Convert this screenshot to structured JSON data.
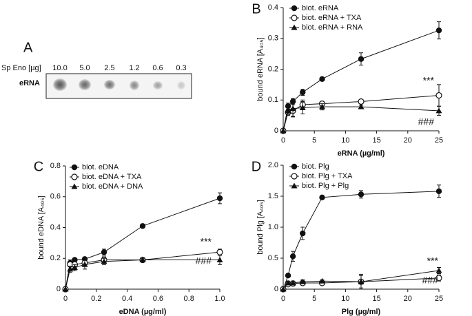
{
  "blot": {
    "panel": "A",
    "axis_label": "Sp Eno [µg]",
    "amounts": [
      "10.0",
      "5.0",
      "2.5",
      "1.2",
      "0.6",
      "0.3"
    ],
    "row_label": "eRNA"
  },
  "chart_data": [
    {
      "type": "line",
      "panel": "B",
      "x_label": "eRNA (µg/ml)",
      "y_label": "bound eRNA [A₄₀₅]",
      "x": [
        0,
        0.78,
        1.56,
        3.125,
        6.25,
        12.5,
        25
      ],
      "xlim": [
        0,
        25
      ],
      "xticks": [
        0,
        5,
        10,
        15,
        20,
        25
      ],
      "ylim": [
        0,
        0.4
      ],
      "yticks": [
        0,
        0.1,
        0.2,
        0.3,
        0.4
      ],
      "series": [
        {
          "name": "biot. eRNA",
          "color": "#111111",
          "marker": "circle",
          "values": [
            0,
            0.08,
            0.095,
            0.125,
            0.168,
            0.233,
            0.326
          ],
          "errors": [
            0,
            0.01,
            0.01,
            0.01,
            0.006,
            0.02,
            0.028
          ]
        },
        {
          "name": "biot. eRNA + TXA",
          "color": "#111111",
          "marker": "open-circle",
          "values": [
            0,
            0.06,
            0.065,
            0.085,
            0.088,
            0.095,
            0.115
          ],
          "errors": [
            0,
            0.01,
            0.02,
            0.015,
            0.006,
            0.005,
            0.035
          ]
        },
        {
          "name": "biot. eRNA + RNA",
          "color": "#111111",
          "marker": "triangle",
          "values": [
            0,
            0.065,
            0.072,
            0.075,
            0.078,
            0.078,
            0.065
          ],
          "errors": [
            0,
            0.01,
            0.025,
            0.02,
            0.01,
            0.005,
            0.015
          ]
        }
      ],
      "annotations": [
        "***",
        "###"
      ]
    },
    {
      "type": "line",
      "panel": "C",
      "x_label": "eDNA (µg/ml)",
      "y_label": "bound eDNA [A₄₀₅]",
      "x": [
        0,
        0.03,
        0.06,
        0.125,
        0.25,
        0.5,
        1.0
      ],
      "xlim": [
        0,
        1
      ],
      "xticks": [
        0,
        0.2,
        0.4,
        0.6,
        0.8,
        {
          "value": 1,
          "label": "1.0"
        }
      ],
      "ylim": [
        0,
        0.8
      ],
      "yticks": [
        0,
        0.2,
        0.4,
        0.6,
        0.8
      ],
      "series": [
        {
          "name": "biot. eDNA",
          "color": "#111111",
          "marker": "circle",
          "values": [
            0,
            0.17,
            0.19,
            0.195,
            0.24,
            0.41,
            0.59
          ],
          "errors": [
            0,
            0.01,
            0.01,
            0.01,
            0.02,
            0.01,
            0.035
          ]
        },
        {
          "name": "biot. eDNA + TXA",
          "color": "#111111",
          "marker": "open-circle",
          "values": [
            0,
            0.16,
            0.16,
            0.17,
            0.19,
            0.19,
            0.24
          ],
          "errors": [
            0,
            0.03,
            0.02,
            0.02,
            0.02,
            0.01,
            0.02
          ]
        },
        {
          "name": "biot. eDNA + DNA",
          "color": "#111111",
          "marker": "triangle",
          "values": [
            0,
            0.13,
            0.14,
            0.16,
            0.18,
            0.19,
            0.19
          ],
          "errors": [
            0,
            0.02,
            0.02,
            0.03,
            0.02,
            0.01,
            0.03
          ]
        }
      ],
      "annotations": [
        "***",
        "###"
      ]
    },
    {
      "type": "line",
      "panel": "D",
      "x_label": "Plg (µg/ml)",
      "y_label": "bound Plg [A₄₀₅]",
      "x": [
        0,
        0.78,
        1.56,
        3.125,
        6.25,
        12.5,
        25
      ],
      "xlim": [
        0,
        25
      ],
      "xticks": [
        0,
        5,
        10,
        15,
        20,
        25
      ],
      "ylim": [
        0,
        2
      ],
      "yticks": [
        0,
        0.5,
        {
          "value": 1,
          "label": "1.0"
        },
        1.5,
        {
          "value": 2,
          "label": "2.0"
        }
      ],
      "series": [
        {
          "name": "biot. Plg",
          "color": "#111111",
          "marker": "circle",
          "values": [
            0,
            0.22,
            0.53,
            0.9,
            1.48,
            1.53,
            1.58
          ],
          "errors": [
            0,
            0.02,
            0.08,
            0.1,
            0.02,
            0.06,
            0.1
          ]
        },
        {
          "name": "biot. Plg + TXA",
          "color": "#111111",
          "marker": "open-circle",
          "values": [
            0,
            0.08,
            0.09,
            0.1,
            0.1,
            0.12,
            0.18
          ],
          "errors": [
            0,
            0.02,
            0.02,
            0.02,
            0.02,
            0.1,
            0.05
          ]
        },
        {
          "name": "biot. Plg + Plg",
          "color": "#111111",
          "marker": "triangle",
          "values": [
            0,
            0.1,
            0.1,
            0.12,
            0.13,
            0.12,
            0.3
          ],
          "errors": [
            0,
            0.03,
            0.03,
            0.03,
            0.02,
            0.12,
            0.05
          ]
        }
      ],
      "annotations": [
        "***",
        "###"
      ]
    }
  ]
}
